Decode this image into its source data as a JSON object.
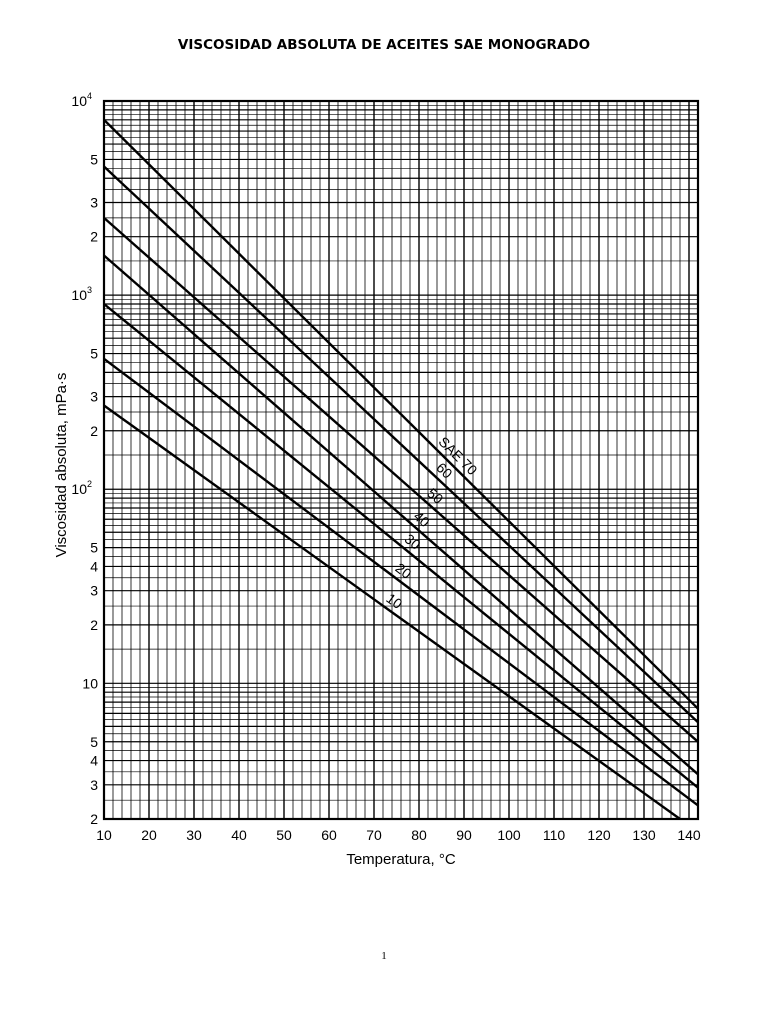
{
  "page": {
    "title": "VISCOSIDAD ABSOLUTA DE ACEITES SAE MONOGRADO",
    "page_number": "1"
  },
  "chart_data": {
    "type": "line",
    "title": "VISCOSIDAD ABSOLUTA DE ACEITES SAE MONOGRADO",
    "xlabel": "Temperatura, °C",
    "ylabel": "Viscosidad absoluta, mPa·s",
    "xscale": "linear",
    "yscale": "log",
    "xlim": [
      10,
      142
    ],
    "ylim": [
      2,
      10000
    ],
    "grid": true,
    "x_ticks": [
      "10",
      "20",
      "30",
      "40",
      "50",
      "60",
      "70",
      "80",
      "90",
      "100",
      "110",
      "120",
      "130",
      "140"
    ],
    "y_ticks": [
      {
        "value": 10000,
        "base": "10",
        "exp": "4"
      },
      {
        "value": 5000,
        "base": "5",
        "exp": ""
      },
      {
        "value": 3000,
        "base": "3",
        "exp": ""
      },
      {
        "value": 2000,
        "base": "2",
        "exp": ""
      },
      {
        "value": 1000,
        "base": "10",
        "exp": "3"
      },
      {
        "value": 500,
        "base": "5",
        "exp": ""
      },
      {
        "value": 300,
        "base": "3",
        "exp": ""
      },
      {
        "value": 200,
        "base": "2",
        "exp": ""
      },
      {
        "value": 100,
        "base": "10",
        "exp": "2"
      },
      {
        "value": 50,
        "base": "5",
        "exp": ""
      },
      {
        "value": 40,
        "base": "4",
        "exp": ""
      },
      {
        "value": 30,
        "base": "3",
        "exp": ""
      },
      {
        "value": 20,
        "base": "2",
        "exp": ""
      },
      {
        "value": 10,
        "base": "10",
        "exp": ""
      },
      {
        "value": 5,
        "base": "5",
        "exp": ""
      },
      {
        "value": 4,
        "base": "4",
        "exp": ""
      },
      {
        "value": 3,
        "base": "3",
        "exp": ""
      },
      {
        "value": 2,
        "base": "2",
        "exp": ""
      }
    ],
    "series": [
      {
        "name": "10",
        "x": [
          10,
          138
        ],
        "y": [
          270,
          2.0
        ]
      },
      {
        "name": "20",
        "x": [
          10,
          142
        ],
        "y": [
          470,
          2.35
        ]
      },
      {
        "name": "30",
        "x": [
          10,
          142
        ],
        "y": [
          900,
          2.9
        ]
      },
      {
        "name": "40",
        "x": [
          10,
          142
        ],
        "y": [
          1600,
          3.4
        ]
      },
      {
        "name": "50",
        "x": [
          10,
          142
        ],
        "y": [
          2500,
          5.0
        ]
      },
      {
        "name": "60",
        "x": [
          10,
          142
        ],
        "y": [
          4600,
          6.3
        ]
      },
      {
        "name": "SAE 70",
        "x": [
          10,
          142
        ],
        "y": [
          8000,
          7.4
        ]
      }
    ]
  }
}
